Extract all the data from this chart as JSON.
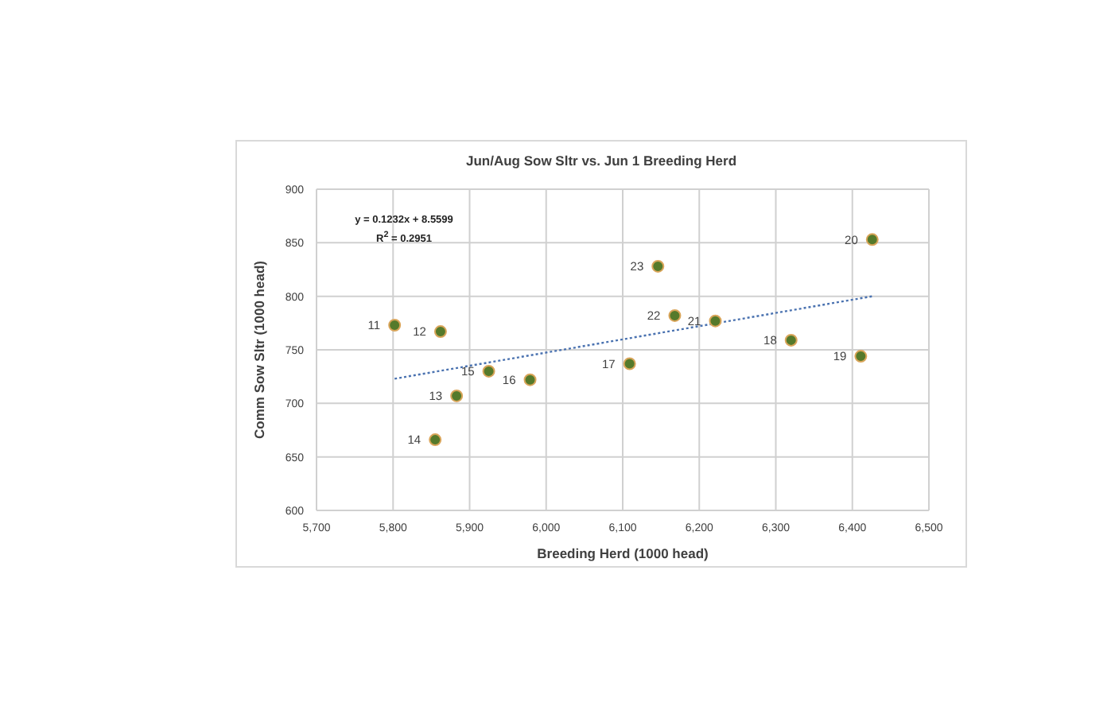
{
  "chart_data": {
    "type": "scatter",
    "title": "Jun/Aug Sow Sltr vs. Jun 1 Breeding Herd",
    "xlabel": "Breeding Herd (1000 head)",
    "ylabel": "Comm Sow Sltr (1000 head)",
    "annotations": [
      "y = 0.1232x + 8.5599",
      "R$^{2}$ = 0.2951",
      {
        "text": "11",
        "x": 5802,
        "y": 773
      },
      {
        "text": "12",
        "x": 5862,
        "y": 767
      },
      {
        "text": "13",
        "x": 5883,
        "y": 707
      },
      {
        "text": "14",
        "x": 5855,
        "y": 666
      },
      {
        "text": "15",
        "x": 5925,
        "y": 730
      },
      {
        "text": "16",
        "x": 5979,
        "y": 722
      },
      {
        "text": "17",
        "x": 6109,
        "y": 737
      },
      {
        "text": "18",
        "x": 6320,
        "y": 759
      },
      {
        "text": "19",
        "x": 6411,
        "y": 744
      },
      {
        "text": "20",
        "x": 6426,
        "y": 853
      },
      {
        "text": "21",
        "x": 6221,
        "y": 777
      },
      {
        "text": "22",
        "x": 6168,
        "y": 782
      },
      {
        "text": "23",
        "x": 6146,
        "y": 828
      }
    ],
    "series": [
      {
        "color": "#557a2b",
        "x": [
          5802,
          5862,
          5883,
          5855,
          5925,
          5979,
          6109,
          6320,
          6411,
          6426,
          6221,
          6168,
          6146
        ],
        "values": [
          773,
          767,
          707,
          666,
          730,
          722,
          737,
          759,
          744,
          853,
          777,
          782,
          828
        ],
        "marker": "circle"
      },
      {
        "type": "line",
        "color": "#4a72b0",
        "x": [
          5802,
          6426
        ],
        "values": [
          723,
          800
        ],
        "line_style": "dotted",
        "marker": "none"
      }
    ],
    "xlim": [
      5700,
      6500
    ],
    "xticks": [
      {
        "value": 5700,
        "label": "5,700"
      },
      {
        "value": 5800,
        "label": "5,800"
      },
      {
        "value": 5900,
        "label": "5,900"
      },
      {
        "value": 6000,
        "label": "6,000"
      },
      {
        "value": 6100,
        "label": "6,100"
      },
      {
        "value": 6200,
        "label": "6,200"
      },
      {
        "value": 6300,
        "label": "6,300"
      },
      {
        "value": 6400,
        "label": "6,400"
      },
      {
        "value": 6500,
        "label": "6,500"
      }
    ],
    "ylim": [
      600,
      900
    ],
    "yticks": [
      600,
      650,
      700,
      750,
      800,
      850,
      900
    ],
    "grid": true
  }
}
